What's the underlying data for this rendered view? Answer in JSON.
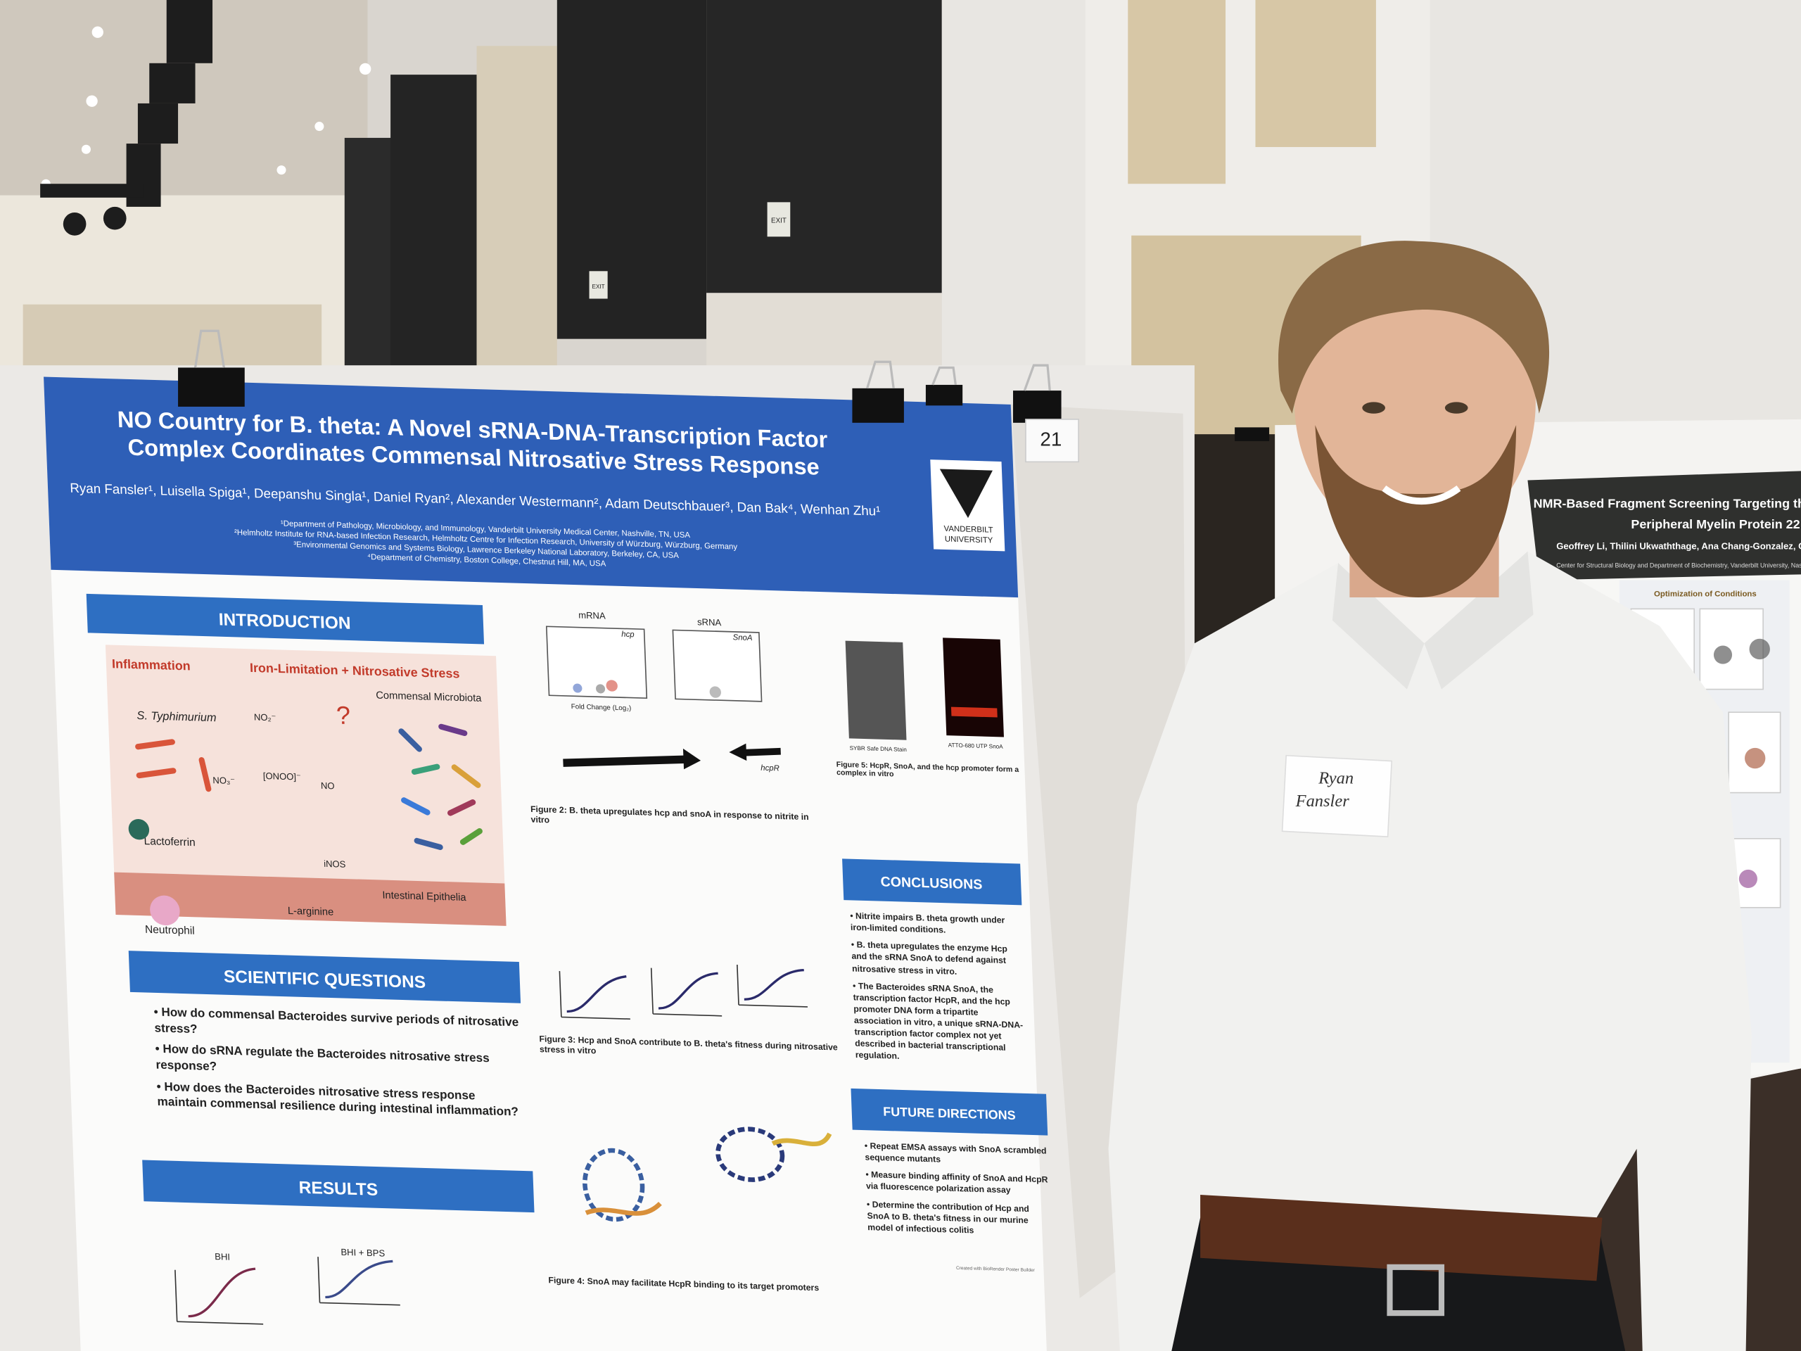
{
  "poster": {
    "title": [
      "NO Country for B. theta: A Novel sRNA-DNA-Transcription Factor",
      "Complex Coordinates Commensal Nitrosative Stress Response"
    ],
    "authors": "Ryan Fansler¹, Luisella Spiga¹, Deepanshu Singla¹, Daniel Ryan², Alexander Westermann², Adam Deutschbauer³, Dan Bak⁴, Wenhan Zhu¹",
    "affiliations": [
      "¹Department of Pathology, Microbiology, and Immunology, Vanderbilt University Medical Center, Nashville, TN, USA",
      "²Helmholtz Institute for RNA-based Infection Research, Helmholtz Centre for Infection Research, University of Würzburg, Würzburg, Germany",
      "³Environmental Genomics and Systems Biology, Lawrence Berkeley National Laboratory, Berkeley, CA, USA",
      "⁴Department of Chemistry, Boston College, Chestnut Hill, MA, USA"
    ],
    "logo": [
      "VANDERBILT",
      "UNIVERSITY"
    ],
    "introduction": {
      "heading": "INTRODUCTION",
      "labels": [
        "Inflammation",
        "Iron-Limitation + Nitrosative Stress",
        "S. Typhimurium",
        "Commensal Microbiota",
        "?",
        "NO₂⁻",
        "NO₃⁻",
        "[ONOO]⁻",
        "NO",
        "Lactoferrin",
        "iNOS",
        "Neutrophil",
        "L-arginine",
        "Intestinal Epithelia"
      ]
    },
    "scientific_questions": {
      "heading": "SCIENTIFIC QUESTIONS",
      "items": [
        "How do commensal Bacteroides survive periods of nitrosative stress?",
        "How do sRNA regulate the Bacteroides nitrosative stress response?",
        "How does the Bacteroides nitrosative stress response maintain commensal resilience during intestinal inflammation?"
      ]
    },
    "results": {
      "heading": "RESULTS",
      "labels": [
        "BHI",
        "BHI + BPS"
      ]
    },
    "figure_labels": [
      "mRNA",
      "sRNA",
      "hcp",
      "SnoA",
      "hcpR",
      "Fold Change (Log₂)",
      "SYBR Safe DNA Stain",
      "ATTO-680 UTP SnoA"
    ],
    "figures": [
      "Figure 2: B. theta upregulates hcp and snoA in response to nitrite in vitro",
      "Figure 3: Hcp and SnoA contribute to B. theta's fitness during nitrosative stress in vitro",
      "Figure 4: SnoA may facilitate HcpR binding to its target promoters",
      "Figure 5: HcpR, SnoA, and the hcp promoter form a complex in vitro"
    ],
    "conclusions": {
      "heading": "CONCLUSIONS",
      "items": [
        "Nitrite impairs B. theta growth under iron-limited conditions.",
        "B. theta upregulates the enzyme Hcp and the sRNA SnoA to defend against nitrosative stress in vitro.",
        "The Bacteroides sRNA SnoA, the transcription factor HcpR, and the hcp promoter DNA form a tripartite association in vitro, a unique sRNA-DNA-transcription factor complex not yet described in bacterial transcriptional regulation."
      ]
    },
    "future_directions": {
      "heading": "FUTURE DIRECTIONS",
      "items": [
        "Repeat EMSA assays with SnoA scrambled sequence mutants",
        "Measure binding affinity of SnoA and HcpR via fluorescence polarization assay",
        "Determine the contribution of Hcp and SnoA to B. theta's fitness in our murine model of infectious colitis"
      ]
    },
    "credit": "Created with BioRender Poster Builder"
  },
  "board_number": "21",
  "name_tag": [
    "Ryan",
    "Fansler"
  ],
  "exit_signs": [
    "EXIT",
    "EXIT"
  ],
  "neighbor_poster": {
    "title": [
      "NMR-Based Fragment Screening Targeting the Memb",
      "Peripheral Myelin Protein 22"
    ],
    "authors": "Geoffrey Li, Thilini Ukwaththage, Ana Chang-Gonzalez, Charles R",
    "affiliation": "Center for Structural Biology and Department of Biochemistry, Vanderbilt University, Nashville",
    "section": "Optimization of Conditions"
  }
}
